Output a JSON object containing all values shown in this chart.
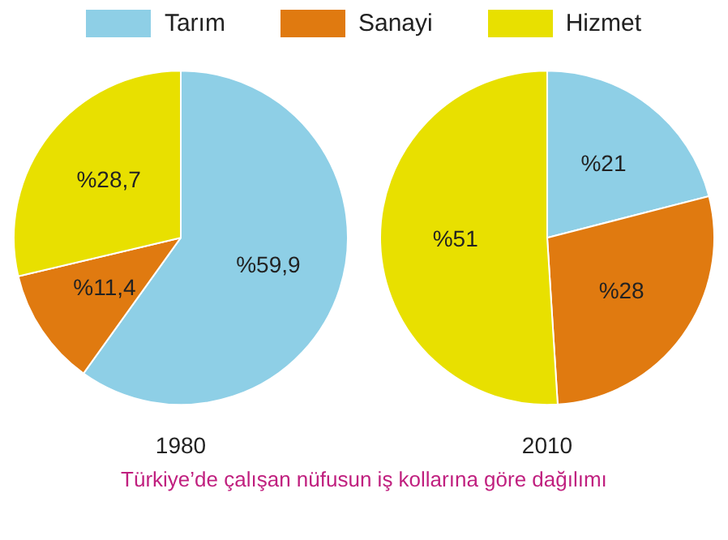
{
  "chart_data": [
    {
      "type": "pie",
      "title": "1980",
      "categories": [
        "Tarım",
        "Sanayi",
        "Hizmet"
      ],
      "values": [
        59.9,
        11.4,
        28.7
      ],
      "value_labels": [
        "%59,9",
        "%11,4",
        "%28,7"
      ],
      "colors": [
        "#8ecfe6",
        "#e07a10",
        "#e8e000"
      ],
      "legend": "top",
      "annotations": [
        "Türkiye’de çalışan nüfusun iş kollarına göre dağılımı"
      ]
    },
    {
      "type": "pie",
      "title": "2010",
      "categories": [
        null,
        null,
        null
      ],
      "values": [
        21,
        28,
        51
      ],
      "value_labels": [
        "%21",
        "%28",
        "%51"
      ],
      "colors": [
        "#8ecfe6",
        "#e07a10",
        "#e8e000"
      ]
    }
  ]
}
